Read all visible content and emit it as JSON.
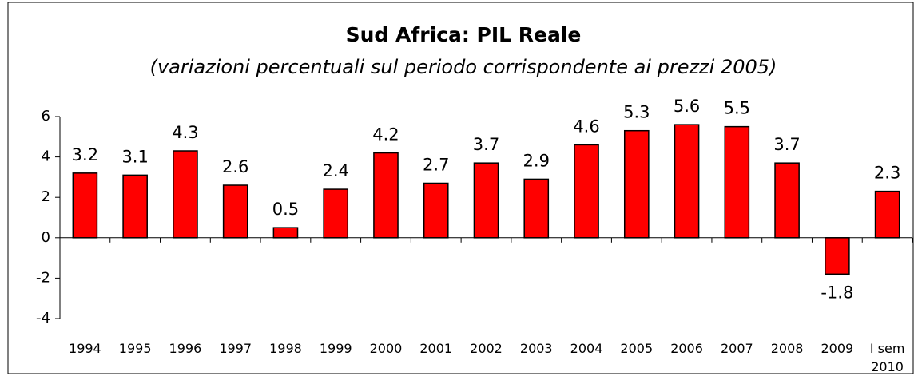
{
  "chart_data": {
    "type": "bar",
    "title": "Sud Africa: PIL Reale",
    "subtitle": "(variazioni percentuali sul periodo corrispondente ai prezzi 2005)",
    "categories": [
      "1994",
      "1995",
      "1996",
      "1997",
      "1998",
      "1999",
      "2000",
      "2001",
      "2002",
      "2003",
      "2004",
      "2005",
      "2006",
      "2007",
      "2008",
      "2009",
      "I sem 2010"
    ],
    "values": [
      3.2,
      3.1,
      4.3,
      2.6,
      0.5,
      2.4,
      4.2,
      2.7,
      3.7,
      2.9,
      4.6,
      5.3,
      5.6,
      5.5,
      3.7,
      -1.8,
      2.3
    ],
    "color": "#ff0000",
    "ylim": [
      -4,
      6
    ],
    "yticks": [
      -4,
      -2,
      0,
      2,
      4,
      6
    ],
    "grid": false
  }
}
